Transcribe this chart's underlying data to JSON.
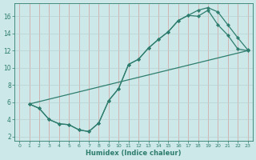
{
  "xlabel": "Humidex (Indice chaleur)",
  "bg_color": "#cce8e8",
  "line_color": "#2e7d6e",
  "xlim": [
    -0.5,
    23.5
  ],
  "ylim": [
    1.5,
    17.5
  ],
  "xticks": [
    0,
    1,
    2,
    3,
    4,
    5,
    6,
    7,
    8,
    9,
    10,
    11,
    12,
    13,
    14,
    15,
    16,
    17,
    18,
    19,
    20,
    21,
    22,
    23
  ],
  "yticks": [
    2,
    4,
    6,
    8,
    10,
    12,
    14,
    16
  ],
  "curve1_x": [
    1,
    2,
    3,
    4,
    5,
    6,
    7,
    8,
    9,
    10,
    11,
    12,
    13,
    14,
    15,
    16,
    17,
    18,
    19,
    20,
    21,
    22,
    23
  ],
  "curve1_y": [
    5.8,
    5.3,
    4.0,
    3.5,
    3.4,
    2.8,
    2.6,
    3.6,
    6.2,
    7.6,
    10.4,
    11.0,
    12.3,
    13.3,
    14.2,
    15.5,
    16.1,
    16.0,
    16.7,
    15.0,
    13.8,
    12.2,
    12.0
  ],
  "curve2_x": [
    1,
    2,
    3,
    4,
    5,
    6,
    7,
    8,
    9,
    10,
    11,
    12,
    13,
    14,
    15,
    16,
    17,
    18,
    19,
    20,
    21,
    22,
    23
  ],
  "curve2_y": [
    5.8,
    5.3,
    4.0,
    3.5,
    3.4,
    2.8,
    2.6,
    3.6,
    6.2,
    7.6,
    10.4,
    11.0,
    12.3,
    13.3,
    14.2,
    15.5,
    16.1,
    16.7,
    17.0,
    16.5,
    15.0,
    13.5,
    12.1
  ],
  "curve3_x": [
    1,
    23
  ],
  "curve3_y": [
    5.8,
    12.0
  ],
  "vgrid_color": "#d4a0a0",
  "hgrid_color": "#b8d0d0"
}
